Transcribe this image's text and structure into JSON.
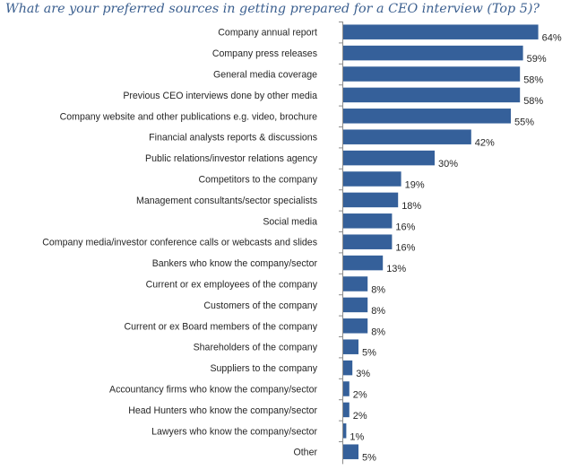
{
  "chart_data": {
    "type": "bar",
    "orientation": "horizontal",
    "title": "What are your preferred sources in getting prepared for a CEO interview (Top 5)?",
    "xlabel": "",
    "ylabel": "",
    "xlim": [
      0,
      64
    ],
    "grid": false,
    "legend": "none",
    "bar_color": "#35609a",
    "value_suffix": "%",
    "categories": [
      "Company annual report",
      "Company press releases",
      "General media coverage",
      "Previous CEO interviews done by other media",
      "Company website and other publications e.g. video, brochure",
      "Financial analysts reports & discussions",
      "Public relations/investor relations agency",
      "Competitors to the company",
      "Management consultants/sector specialists",
      "Social media",
      "Company media/investor conference calls or webcasts and slides",
      "Bankers who know the company/sector",
      "Current or ex employees of the company",
      "Customers of the company",
      "Current or ex Board members of the company",
      "Shareholders of the company",
      "Suppliers to the company",
      "Accountancy firms who know the company/sector",
      "Head Hunters who know the company/sector",
      "Lawyers who know the company/sector",
      "Other"
    ],
    "values": [
      64,
      59,
      58,
      58,
      55,
      42,
      30,
      19,
      18,
      16,
      16,
      13,
      8,
      8,
      8,
      5,
      3,
      2,
      2,
      1,
      5
    ]
  }
}
